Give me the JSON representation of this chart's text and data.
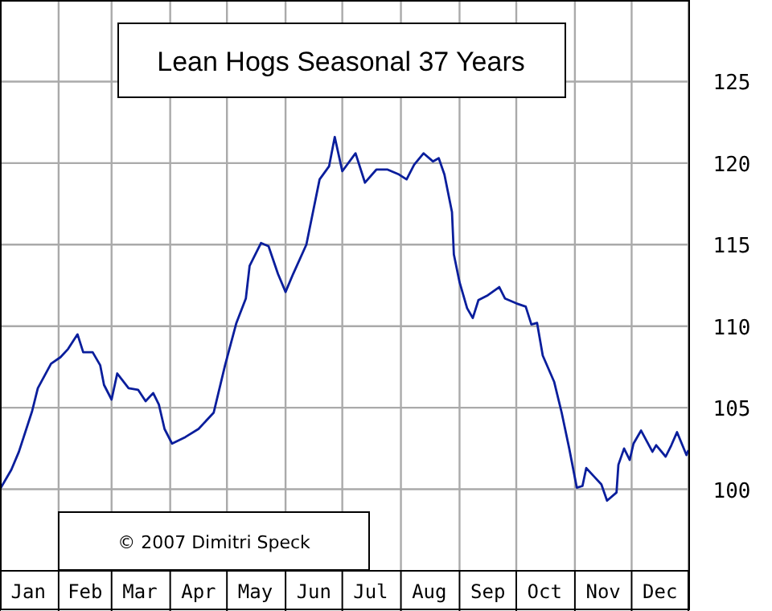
{
  "chart_data": {
    "type": "line",
    "title": "Lean Hogs Seasonal 37 Years",
    "annotations": [
      "© 2007  Dimitri Speck"
    ],
    "x": [
      "--01-01",
      "--01-07",
      "--01-11",
      "--01-18",
      "--01-21",
      "--01-28",
      "--02-02",
      "--02-06",
      "--02-11",
      "--02-14",
      "--02-19",
      "--02-23",
      "--02-25",
      "--03-01",
      "--03-04",
      "--03-10",
      "--03-15",
      "--03-19",
      "--03-23",
      "--03-26",
      "--03-29",
      "--04-02",
      "--04-09",
      "--04-16",
      "--04-24",
      "--04-30",
      "--05-06",
      "--05-11",
      "--05-13",
      "--05-19",
      "--05-23",
      "--05-28",
      "--06-01",
      "--06-05",
      "--06-12",
      "--06-19",
      "--06-24",
      "--06-27",
      "--07-01",
      "--07-08",
      "--07-13",
      "--07-19",
      "--07-25",
      "--07-31",
      "--08-04",
      "--08-08",
      "--08-13",
      "--08-18",
      "--08-21",
      "--08-24",
      "--08-28",
      "--08-29",
      "--09-01",
      "--09-05",
      "--09-08",
      "--09-11",
      "--09-16",
      "--09-22",
      "--09-25",
      "--10-01",
      "--10-06",
      "--10-09",
      "--10-12",
      "--10-15",
      "--10-21",
      "--10-25",
      "--10-29",
      "--11-02",
      "--11-05",
      "--11-07",
      "--11-11",
      "--11-15",
      "--11-18",
      "--11-23",
      "--11-24",
      "--11-27",
      "--11-30",
      "--12-02",
      "--12-06",
      "--12-12",
      "--12-14",
      "--12-19",
      "--12-22",
      "--12-25",
      "--12-30",
      "--12-31"
    ],
    "series": [
      {
        "color": "#0a1e9c",
        "values": [
          100,
          101.2,
          102.3,
          104.8,
          106.2,
          107.7,
          108.1,
          108.6,
          109.5,
          108.4,
          108.4,
          107.6,
          106.4,
          105.5,
          107.1,
          106.2,
          106.1,
          105.4,
          105.9,
          105.2,
          103.7,
          102.8,
          103.2,
          103.7,
          104.7,
          107.6,
          110.2,
          111.7,
          113.7,
          115.1,
          114.9,
          113.2,
          112.1,
          113.2,
          115,
          119,
          119.8,
          121.6,
          119.5,
          120.6,
          118.8,
          119.6,
          119.6,
          119.3,
          119,
          119.9,
          120.6,
          120.1,
          120.3,
          119.3,
          117,
          114.4,
          112.7,
          111.1,
          110.5,
          111.6,
          111.9,
          112.4,
          111.7,
          111.4,
          111.2,
          110.1,
          110.2,
          108.2,
          106.6,
          104.7,
          102.5,
          100.1,
          100.2,
          101.3,
          100.8,
          100.3,
          99.3,
          99.8,
          101.5,
          102.5,
          101.8,
          102.8,
          103.6,
          102.3,
          102.7,
          102,
          102.7,
          103.5,
          102.1,
          102.4
        ]
      }
    ],
    "xlim": [
      "--01-01",
      "--12-31"
    ],
    "xticks": [
      {
        "value": "--01-01",
        "label": null
      },
      {
        "value": "--01-16",
        "label": "Jan"
      },
      {
        "value": "--02-01",
        "label": null
      },
      {
        "value": "--02-15",
        "label": "Feb"
      },
      {
        "value": "--03-01",
        "label": null
      },
      {
        "value": "--03-16",
        "label": "Mar"
      },
      {
        "value": "--04-01",
        "label": null
      },
      {
        "value": "--04-16",
        "label": "Apr"
      },
      {
        "value": "--05-01",
        "label": null
      },
      {
        "value": "--05-16",
        "label": "May"
      },
      {
        "value": "--06-01",
        "label": null
      },
      {
        "value": "--06-16",
        "label": "Jun"
      },
      {
        "value": "--07-01",
        "label": null
      },
      {
        "value": "--07-16",
        "label": "Jul"
      },
      {
        "value": "--08-01",
        "label": null
      },
      {
        "value": "--08-16",
        "label": "Aug"
      },
      {
        "value": "--09-01",
        "label": null
      },
      {
        "value": "--09-16",
        "label": "Sep"
      },
      {
        "value": "--10-01",
        "label": null
      },
      {
        "value": "--10-16",
        "label": "Oct"
      },
      {
        "value": "--11-01",
        "label": null
      },
      {
        "value": "--11-16",
        "label": "Nov"
      },
      {
        "value": "--12-01",
        "label": null
      },
      {
        "value": "--12-16",
        "label": "Dec"
      },
      {
        "value": "--12-31",
        "label": null
      }
    ],
    "ylim": [
      95,
      130
    ],
    "yticks": [
      100,
      105,
      110,
      115,
      120,
      125
    ],
    "grid": true,
    "line_style": "solid",
    "marker": "none"
  }
}
